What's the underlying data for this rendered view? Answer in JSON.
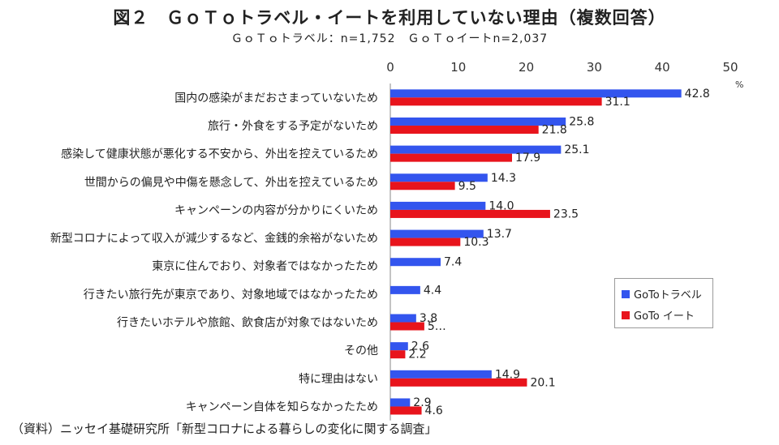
{
  "chart_data": {
    "type": "bar",
    "orientation": "horizontal",
    "title": "図２　ＧｏＴｏトラベル・イートを利用していない理由（複数回答）",
    "subtitle": "ＧｏＴｏトラベル：n=1,752　ＧｏＴｏイートn=2,037",
    "unit": "%",
    "xlim": [
      0,
      50
    ],
    "xticks": [
      "0",
      "10",
      "20",
      "30",
      "40",
      "50"
    ],
    "categories": [
      "国内の感染がまだおさまっていないため",
      "旅行・外食をする予定がないため",
      "感染して健康状態が悪化する不安から、外出を控えているため",
      "世間からの偏見や中傷を懸念して、外出を控えているため",
      "キャンペーンの内容が分かりにくいため",
      "新型コロナによって収入が減少するなど、金銭的余裕がないため",
      "東京に住んでおり、対象者ではなかったため",
      "行きたい旅行先が東京であり、対象地域ではなかったため",
      "行きたいホテルや旅館、飲食店が対象ではないため",
      "その他",
      "特に理由はない",
      "キャンペーン自体を知らなかったため"
    ],
    "series": [
      {
        "name": "GoToトラベル",
        "color": "#3355ee",
        "values": [
          42.8,
          25.8,
          25.1,
          14.3,
          14.0,
          13.7,
          7.4,
          4.4,
          3.8,
          2.6,
          14.9,
          2.9
        ],
        "labels": [
          "42.8",
          "25.8",
          "25.1",
          "14.3",
          "14.0",
          "13.7",
          "7.4",
          "4.4",
          "3.8",
          "2.6",
          "14.9",
          "2.9"
        ]
      },
      {
        "name": "GoTo イート",
        "color": "#e8141c",
        "values": [
          31.1,
          21.8,
          17.9,
          9.5,
          23.5,
          10.3,
          null,
          null,
          5.0,
          2.2,
          20.1,
          4.6
        ],
        "labels": [
          "31.1",
          "21.8",
          "17.9",
          "9.5",
          "23.5",
          "10.3",
          "",
          "",
          "5…",
          "2.2",
          "20.1",
          "4.6"
        ]
      }
    ],
    "legend_position": "right"
  },
  "source": "（資料）ニッセイ基礎研究所「新型コロナによる暮らしの変化に関する調査」"
}
